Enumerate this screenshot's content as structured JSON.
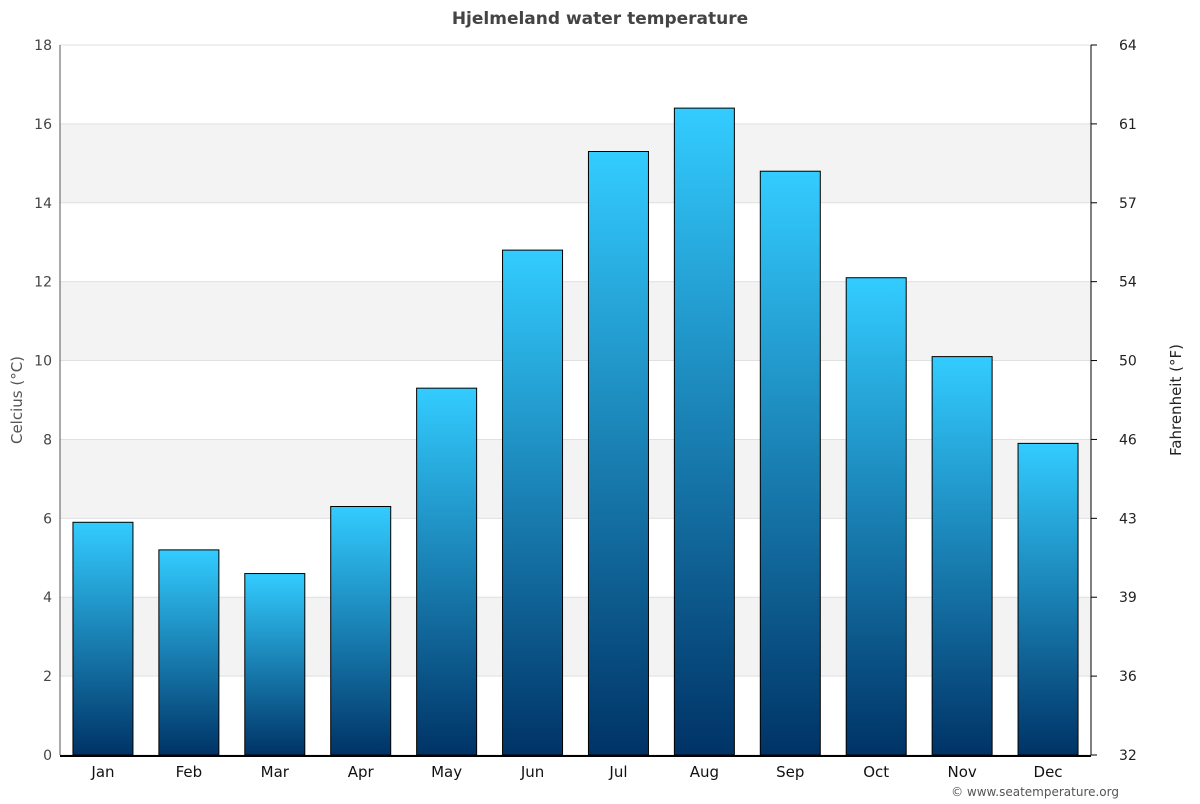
{
  "chart_data": {
    "type": "bar",
    "title": "Hjelmeland water temperature",
    "categories": [
      "Jan",
      "Feb",
      "Mar",
      "Apr",
      "May",
      "Jun",
      "Jul",
      "Aug",
      "Sep",
      "Oct",
      "Nov",
      "Dec"
    ],
    "values": [
      5.9,
      5.2,
      4.6,
      6.3,
      9.3,
      12.8,
      15.3,
      16.4,
      14.8,
      12.1,
      10.1,
      7.9
    ],
    "ylabel": "Celcius (°C)",
    "y2label": "Fahrenheit (°F)",
    "ylim": [
      0,
      18
    ],
    "yticks": [
      0,
      2,
      4,
      6,
      8,
      10,
      12,
      14,
      16,
      18
    ],
    "y2ticks": [
      "32",
      "36",
      "39",
      "43",
      "46",
      "50",
      "54",
      "57",
      "61",
      "64"
    ],
    "grid": true,
    "colors": {
      "bar_top": "#33ccff",
      "bar_bottom": "#003366",
      "band": "#f3f3f3"
    }
  },
  "credit": "© www.seatemperature.org"
}
